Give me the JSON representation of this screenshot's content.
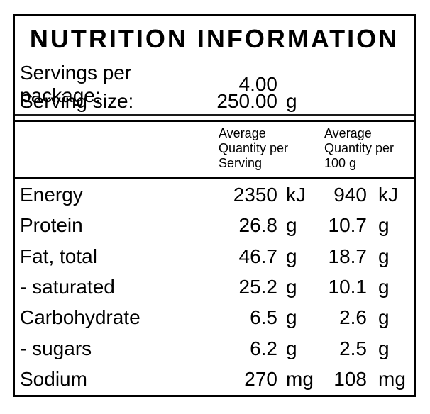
{
  "title": "NUTRITION INFORMATION",
  "serving_info": {
    "servings_per_package": {
      "label": "Servings per package:",
      "value": "4.00",
      "unit": ""
    },
    "serving_size": {
      "label": "Serving size:",
      "value": "250.00",
      "unit": "g"
    }
  },
  "header": {
    "per_serving": [
      "Average",
      "Quantity per",
      "Serving"
    ],
    "per_100g": [
      "Average",
      "Quantity per",
      "100 g"
    ]
  },
  "rows": [
    {
      "label": "Energy",
      "serving_value": "2350",
      "serving_unit": "kJ",
      "per100_value": "940",
      "per100_unit": "kJ"
    },
    {
      "label": "Protein",
      "serving_value": "26.8",
      "serving_unit": "g",
      "per100_value": "10.7",
      "per100_unit": "g"
    },
    {
      "label": "Fat, total",
      "serving_value": "46.7",
      "serving_unit": "g",
      "per100_value": "18.7",
      "per100_unit": "g"
    },
    {
      "label": "- saturated",
      "serving_value": "25.2",
      "serving_unit": "g",
      "per100_value": "10.1",
      "per100_unit": "g"
    },
    {
      "label": "Carbohydrate",
      "serving_value": "6.5",
      "serving_unit": "g",
      "per100_value": "2.6",
      "per100_unit": "g"
    },
    {
      "label": "- sugars",
      "serving_value": "6.2",
      "serving_unit": "g",
      "per100_value": "2.5",
      "per100_unit": "g"
    },
    {
      "label": "Sodium",
      "serving_value": "270",
      "serving_unit": "mg",
      "per100_value": "108",
      "per100_unit": "mg"
    }
  ],
  "colors": {
    "background": "#ffffff",
    "border": "#000000",
    "text": "#000000"
  }
}
